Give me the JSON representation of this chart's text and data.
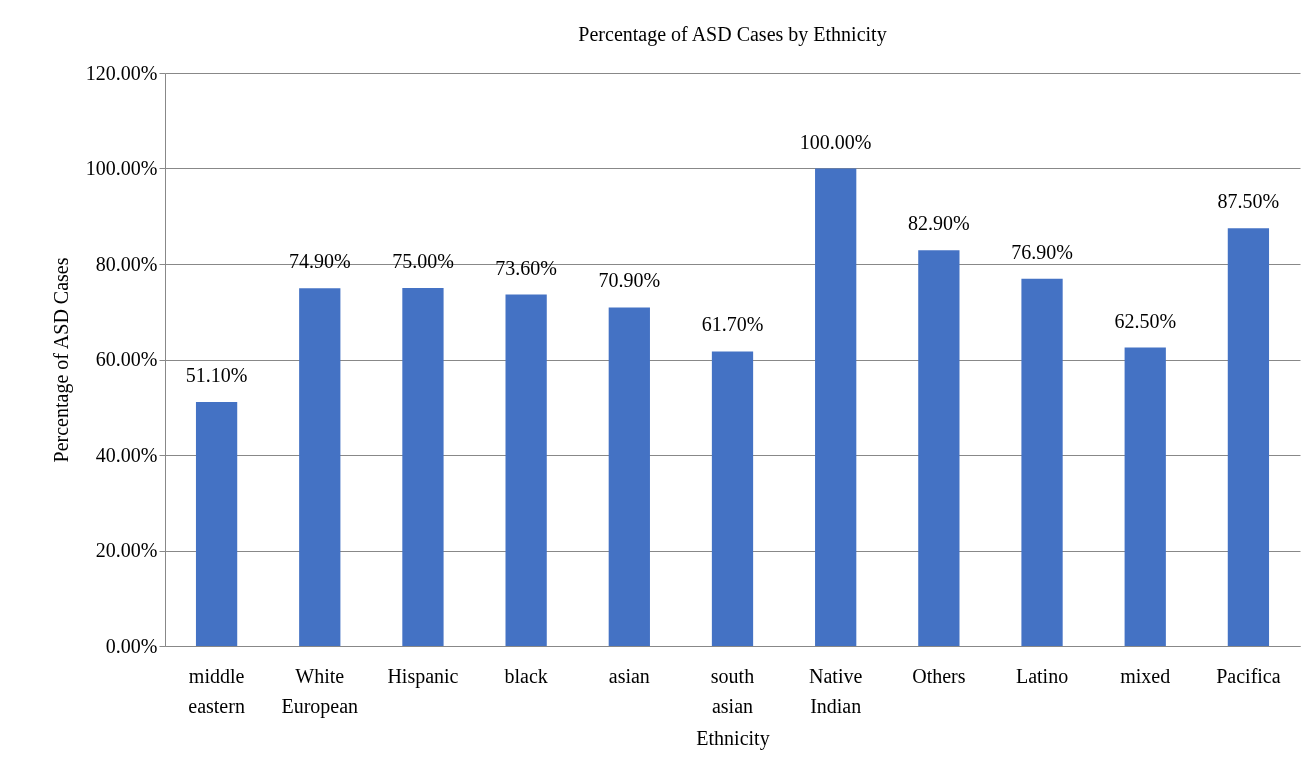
{
  "chart_data": {
    "type": "bar",
    "title": "Percentage of ASD Cases by Ethnicity",
    "xlabel": "Ethnicity",
    "ylabel": "Percentage of ASD Cases",
    "categories": [
      "middle eastern",
      "White European",
      "Hispanic",
      "black",
      "asian",
      "south asian",
      "Native Indian",
      "Others",
      "Latino",
      "mixed",
      "Pacifica"
    ],
    "values": [
      51.1,
      74.9,
      75.0,
      73.6,
      70.9,
      61.7,
      100.0,
      82.9,
      76.9,
      62.5,
      87.5
    ],
    "value_labels": [
      "51.10%",
      "74.90%",
      "75.00%",
      "73.60%",
      "70.90%",
      "61.70%",
      "100.00%",
      "82.90%",
      "76.90%",
      "62.50%",
      "87.50%"
    ],
    "color": "#4472c4",
    "ylim": [
      0,
      120
    ],
    "yticks": [
      {
        "value": 0,
        "label": "0.00%"
      },
      {
        "value": 20,
        "label": "20.00%"
      },
      {
        "value": 40,
        "label": "40.00%"
      },
      {
        "value": 60,
        "label": "60.00%"
      },
      {
        "value": 80,
        "label": "80.00%"
      },
      {
        "value": 100,
        "label": "100.00%"
      },
      {
        "value": 120,
        "label": "120.00%"
      }
    ],
    "grid": "y"
  }
}
